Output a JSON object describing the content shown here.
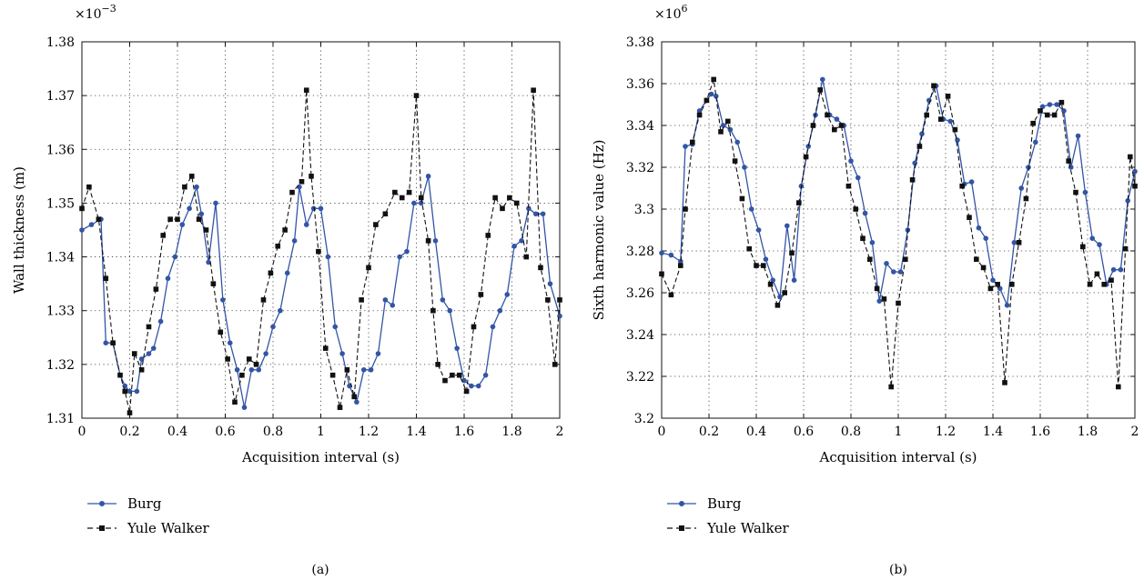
{
  "chart_data": [
    {
      "type": "line",
      "xlabel": "Acquisition interval (s)",
      "ylabel": "Wall thickness (m)",
      "y_multiplier": "×10",
      "y_exponent": "−3",
      "caption": "(a)",
      "xlim": [
        0,
        2
      ],
      "ylim": [
        1.31,
        1.38
      ],
      "xticks": [
        "0",
        "0.2",
        "0.4",
        "0.6",
        "0.8",
        "1",
        "1.2",
        "1.4",
        "1.6",
        "1.8",
        "2"
      ],
      "yticks": [
        "1.31",
        "1.32",
        "1.33",
        "1.34",
        "1.35",
        "1.36",
        "1.37",
        "1.38"
      ],
      "grid": true,
      "legend_position": "below-left",
      "series": [
        {
          "name": "Burg",
          "color": "#3355a6",
          "marker": "circle",
          "line": "solid",
          "x": [
            0,
            0.04,
            0.08,
            0.1,
            0.13,
            0.16,
            0.18,
            0.2,
            0.23,
            0.25,
            0.28,
            0.3,
            0.33,
            0.36,
            0.39,
            0.42,
            0.45,
            0.48,
            0.5,
            0.53,
            0.56,
            0.59,
            0.62,
            0.65,
            0.68,
            0.71,
            0.74,
            0.77,
            0.8,
            0.83,
            0.86,
            0.89,
            0.91,
            0.94,
            0.97,
            1.0,
            1.03,
            1.06,
            1.09,
            1.12,
            1.15,
            1.18,
            1.21,
            1.24,
            1.27,
            1.3,
            1.33,
            1.36,
            1.39,
            1.42,
            1.45,
            1.48,
            1.51,
            1.54,
            1.57,
            1.6,
            1.63,
            1.66,
            1.69,
            1.72,
            1.75,
            1.78,
            1.81,
            1.84,
            1.87,
            1.9,
            1.93,
            1.96,
            2.0
          ],
          "y": [
            1.345,
            1.346,
            1.347,
            1.324,
            1.324,
            1.318,
            1.316,
            1.315,
            1.315,
            1.321,
            1.322,
            1.323,
            1.328,
            1.336,
            1.34,
            1.346,
            1.349,
            1.353,
            1.348,
            1.339,
            1.35,
            1.332,
            1.324,
            1.319,
            1.312,
            1.319,
            1.319,
            1.322,
            1.327,
            1.33,
            1.337,
            1.343,
            1.353,
            1.346,
            1.349,
            1.349,
            1.34,
            1.327,
            1.322,
            1.316,
            1.313,
            1.319,
            1.319,
            1.322,
            1.332,
            1.331,
            1.34,
            1.341,
            1.35,
            1.35,
            1.355,
            1.343,
            1.332,
            1.33,
            1.323,
            1.317,
            1.316,
            1.316,
            1.318,
            1.327,
            1.33,
            1.333,
            1.342,
            1.343,
            1.349,
            1.348,
            1.348,
            1.335,
            1.329
          ]
        },
        {
          "name": "Yule Walker",
          "color": "#111111",
          "marker": "square",
          "line": "dashed",
          "x": [
            0,
            0.03,
            0.07,
            0.1,
            0.13,
            0.16,
            0.18,
            0.2,
            0.22,
            0.25,
            0.28,
            0.31,
            0.34,
            0.37,
            0.4,
            0.43,
            0.46,
            0.49,
            0.52,
            0.55,
            0.58,
            0.61,
            0.64,
            0.67,
            0.7,
            0.73,
            0.76,
            0.79,
            0.82,
            0.85,
            0.88,
            0.92,
            0.94,
            0.96,
            0.99,
            1.02,
            1.05,
            1.08,
            1.11,
            1.14,
            1.17,
            1.2,
            1.23,
            1.27,
            1.31,
            1.34,
            1.37,
            1.4,
            1.42,
            1.45,
            1.47,
            1.49,
            1.52,
            1.55,
            1.58,
            1.61,
            1.64,
            1.67,
            1.7,
            1.73,
            1.76,
            1.79,
            1.82,
            1.86,
            1.89,
            1.92,
            1.95,
            1.98,
            2.0
          ],
          "y": [
            1.349,
            1.353,
            1.347,
            1.336,
            1.324,
            1.318,
            1.315,
            1.311,
            1.322,
            1.319,
            1.327,
            1.334,
            1.344,
            1.347,
            1.347,
            1.353,
            1.355,
            1.347,
            1.345,
            1.335,
            1.326,
            1.321,
            1.313,
            1.318,
            1.321,
            1.32,
            1.332,
            1.337,
            1.342,
            1.345,
            1.352,
            1.354,
            1.371,
            1.355,
            1.341,
            1.323,
            1.318,
            1.312,
            1.319,
            1.314,
            1.332,
            1.338,
            1.346,
            1.348,
            1.352,
            1.351,
            1.352,
            1.37,
            1.351,
            1.343,
            1.33,
            1.32,
            1.317,
            1.318,
            1.318,
            1.315,
            1.327,
            1.333,
            1.344,
            1.351,
            1.349,
            1.351,
            1.35,
            1.34,
            1.371,
            1.338,
            1.332,
            1.32,
            1.332
          ]
        }
      ]
    },
    {
      "type": "line",
      "xlabel": "Acquisition interval (s)",
      "ylabel": "Sixth harmonic value (Hz)",
      "y_multiplier": "×10",
      "y_exponent": "6",
      "caption": "(b)",
      "xlim": [
        0,
        2
      ],
      "ylim": [
        3.2,
        3.38
      ],
      "xticks": [
        "0",
        "0.2",
        "0.4",
        "0.6",
        "0.8",
        "1",
        "1.2",
        "1.4",
        "1.6",
        "1.8",
        "2"
      ],
      "yticks": [
        "3.2",
        "3.22",
        "3.24",
        "3.26",
        "3.28",
        "3.3",
        "3.32",
        "3.34",
        "3.36",
        "3.38"
      ],
      "grid": true,
      "legend_position": "below-left",
      "series": [
        {
          "name": "Burg",
          "color": "#3355a6",
          "marker": "circle",
          "line": "solid",
          "x": [
            0,
            0.04,
            0.08,
            0.1,
            0.13,
            0.16,
            0.19,
            0.21,
            0.23,
            0.26,
            0.29,
            0.32,
            0.35,
            0.38,
            0.41,
            0.44,
            0.47,
            0.5,
            0.53,
            0.56,
            0.59,
            0.62,
            0.65,
            0.68,
            0.71,
            0.74,
            0.77,
            0.8,
            0.83,
            0.86,
            0.89,
            0.92,
            0.95,
            0.98,
            1.01,
            1.04,
            1.07,
            1.1,
            1.13,
            1.16,
            1.19,
            1.22,
            1.25,
            1.28,
            1.31,
            1.34,
            1.37,
            1.4,
            1.43,
            1.46,
            1.49,
            1.52,
            1.55,
            1.58,
            1.61,
            1.64,
            1.67,
            1.7,
            1.73,
            1.76,
            1.79,
            1.82,
            1.85,
            1.88,
            1.91,
            1.94,
            1.97,
            2.0
          ],
          "y": [
            3.279,
            3.278,
            3.275,
            3.33,
            3.331,
            3.347,
            3.352,
            3.355,
            3.354,
            3.34,
            3.338,
            3.332,
            3.32,
            3.3,
            3.29,
            3.276,
            3.266,
            3.258,
            3.292,
            3.266,
            3.311,
            3.33,
            3.345,
            3.362,
            3.345,
            3.343,
            3.34,
            3.323,
            3.315,
            3.298,
            3.284,
            3.256,
            3.274,
            3.27,
            3.27,
            3.29,
            3.322,
            3.336,
            3.352,
            3.359,
            3.343,
            3.342,
            3.333,
            3.312,
            3.313,
            3.291,
            3.286,
            3.266,
            3.262,
            3.254,
            3.284,
            3.31,
            3.32,
            3.332,
            3.349,
            3.35,
            3.35,
            3.347,
            3.32,
            3.335,
            3.308,
            3.286,
            3.283,
            3.264,
            3.271,
            3.271,
            3.304,
            3.318
          ]
        },
        {
          "name": "Yule Walker",
          "color": "#111111",
          "marker": "square",
          "line": "dashed",
          "x": [
            0,
            0.04,
            0.08,
            0.1,
            0.13,
            0.16,
            0.19,
            0.22,
            0.25,
            0.28,
            0.31,
            0.34,
            0.37,
            0.4,
            0.43,
            0.46,
            0.49,
            0.52,
            0.55,
            0.58,
            0.61,
            0.64,
            0.67,
            0.7,
            0.73,
            0.76,
            0.79,
            0.82,
            0.85,
            0.88,
            0.91,
            0.94,
            0.97,
            1.0,
            1.03,
            1.06,
            1.09,
            1.12,
            1.15,
            1.18,
            1.21,
            1.24,
            1.27,
            1.3,
            1.33,
            1.36,
            1.39,
            1.42,
            1.45,
            1.48,
            1.51,
            1.54,
            1.57,
            1.6,
            1.63,
            1.66,
            1.69,
            1.72,
            1.75,
            1.78,
            1.81,
            1.84,
            1.87,
            1.9,
            1.93,
            1.96,
            1.98,
            2.0
          ],
          "y": [
            3.269,
            3.259,
            3.273,
            3.3,
            3.332,
            3.345,
            3.352,
            3.362,
            3.337,
            3.342,
            3.323,
            3.305,
            3.281,
            3.273,
            3.273,
            3.264,
            3.254,
            3.26,
            3.279,
            3.303,
            3.325,
            3.34,
            3.357,
            3.345,
            3.338,
            3.34,
            3.311,
            3.3,
            3.286,
            3.276,
            3.262,
            3.257,
            3.215,
            3.255,
            3.276,
            3.314,
            3.33,
            3.345,
            3.359,
            3.343,
            3.354,
            3.338,
            3.311,
            3.296,
            3.276,
            3.272,
            3.262,
            3.264,
            3.217,
            3.264,
            3.284,
            3.305,
            3.341,
            3.347,
            3.345,
            3.345,
            3.351,
            3.323,
            3.308,
            3.282,
            3.264,
            3.269,
            3.264,
            3.266,
            3.215,
            3.281,
            3.325,
            3.311
          ]
        }
      ]
    }
  ],
  "legend": {
    "entries": [
      "Burg",
      "Yule Walker"
    ]
  }
}
